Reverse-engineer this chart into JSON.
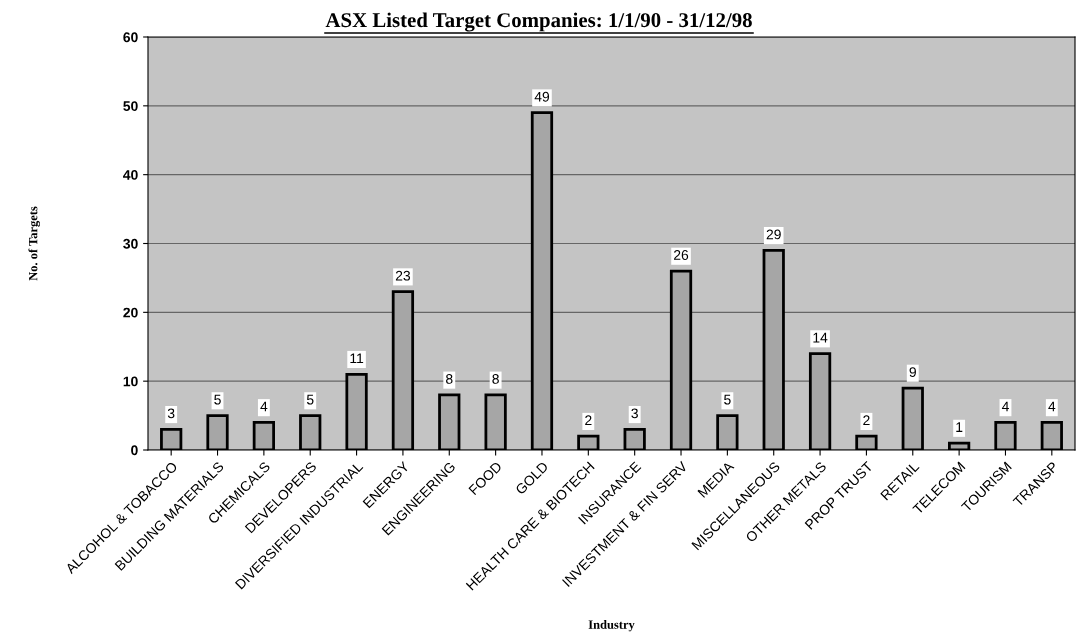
{
  "chart_data": {
    "type": "bar",
    "title": "ASX Listed Target Companies: 1/1/90 - 31/12/98",
    "xlabel": "Industry",
    "ylabel": "No. of Targets",
    "categories": [
      "ALCOHOL & TOBACCO",
      "BUILDING MATERIALS",
      "CHEMICALS",
      "DEVELOPERS",
      "DIVERSIFIED INDUSTRIAL",
      "ENERGY",
      "ENGINEERING",
      "FOOD",
      "GOLD",
      "HEALTH CARE & BIOTECH",
      "INSURANCE",
      "INVESTMENT & FIN SERV",
      "MEDIA",
      "MISCELLANEOUS",
      "OTHER METALS",
      "PROP TRUST",
      "RETAIL",
      "TELECOM",
      "TOURISM",
      "TRANSP"
    ],
    "values": [
      3,
      5,
      4,
      5,
      11,
      23,
      8,
      8,
      49,
      2,
      3,
      26,
      5,
      29,
      14,
      2,
      9,
      1,
      4,
      4
    ],
    "color": "#a6a6a6",
    "ylim": [
      0,
      60
    ],
    "yticks": [
      0,
      10,
      20,
      30,
      40,
      50,
      60
    ],
    "grid": "y",
    "data_labels": true
  }
}
